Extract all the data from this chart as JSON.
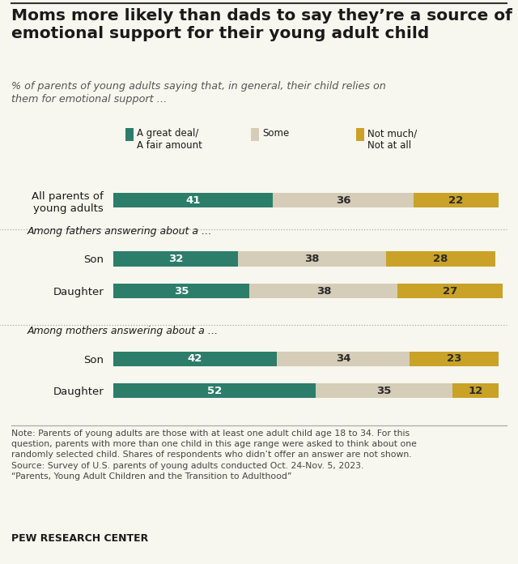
{
  "title": "Moms more likely than dads to say they’re a source of\nemotional support for their young adult child",
  "subtitle": "% of parents of young adults saying that, in general, their child relies on\nthem for emotional support …",
  "legend_labels": [
    "A great deal/\nA fair amount",
    "Some",
    "Not much/\nNot at all"
  ],
  "colors": [
    "#2d7d6b",
    "#d5cdb8",
    "#c9a227"
  ],
  "bar_data": [
    {
      "label": "All parents of\nyoung adults",
      "values": [
        41,
        36,
        22
      ],
      "group": "all"
    },
    {
      "label": "Son",
      "values": [
        32,
        38,
        28
      ],
      "group": "fathers"
    },
    {
      "label": "Daughter",
      "values": [
        35,
        38,
        27
      ],
      "group": "fathers"
    },
    {
      "label": "Son",
      "values": [
        42,
        34,
        23
      ],
      "group": "mothers"
    },
    {
      "label": "Daughter",
      "values": [
        52,
        35,
        12
      ],
      "group": "mothers"
    }
  ],
  "section_headers": {
    "fathers": "Among fathers answering about a …",
    "mothers": "Among mothers answering about a …"
  },
  "note_text": "Note: Parents of young adults are those with at least one adult child age 18 to 34. For this\nquestion, parents with more than one child in this age range were asked to think about one\nrandomly selected child. Shares of respondents who didn’t offer an answer are not shown.\nSource: Survey of U.S. parents of young adults conducted Oct. 24-Nov. 5, 2023.\n“Parents, Young Adult Children and the Transition to Adulthood”",
  "source_label": "PEW RESEARCH CENTER",
  "bg_color": "#f7f7ef",
  "text_color": "#1a1a1a",
  "note_color": "#444444"
}
